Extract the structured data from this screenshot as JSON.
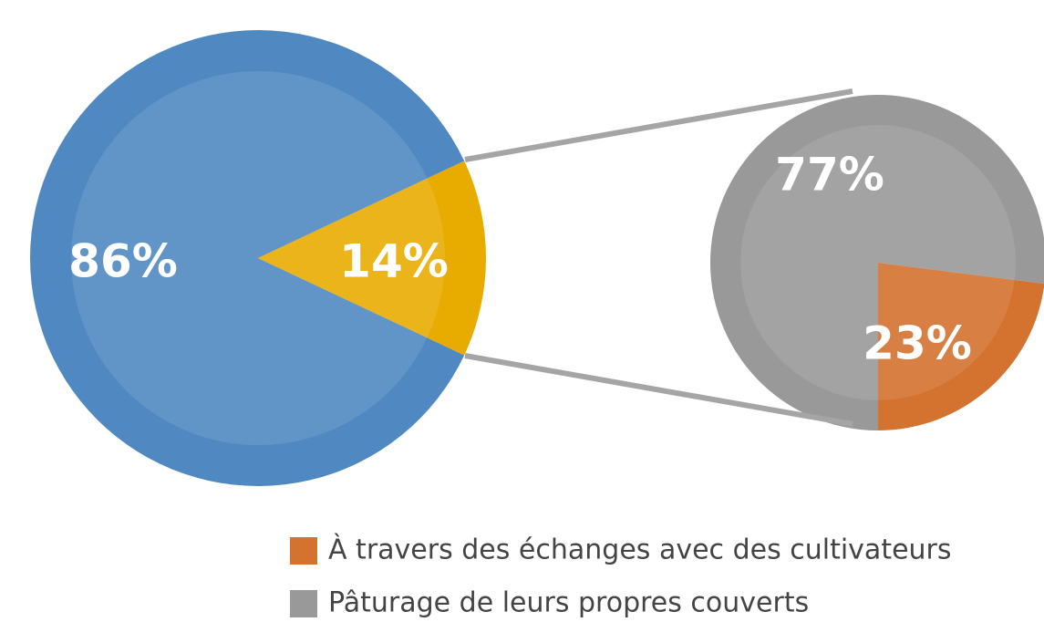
{
  "chart_data": [
    {
      "type": "pie",
      "values": [
        86,
        14
      ],
      "value_labels": [
        "86%",
        "14%"
      ],
      "colors": [
        "#5089c2",
        "#e8ac00"
      ]
    },
    {
      "type": "pie",
      "categories": [
        "À travers des échanges avec des cultivateurs",
        "Pâturage de leurs propres couverts"
      ],
      "values": [
        23,
        77
      ],
      "value_labels": [
        "23%",
        "77%"
      ],
      "colors": [
        "#d4722f",
        "#999999"
      ],
      "legend": "bottom"
    }
  ]
}
